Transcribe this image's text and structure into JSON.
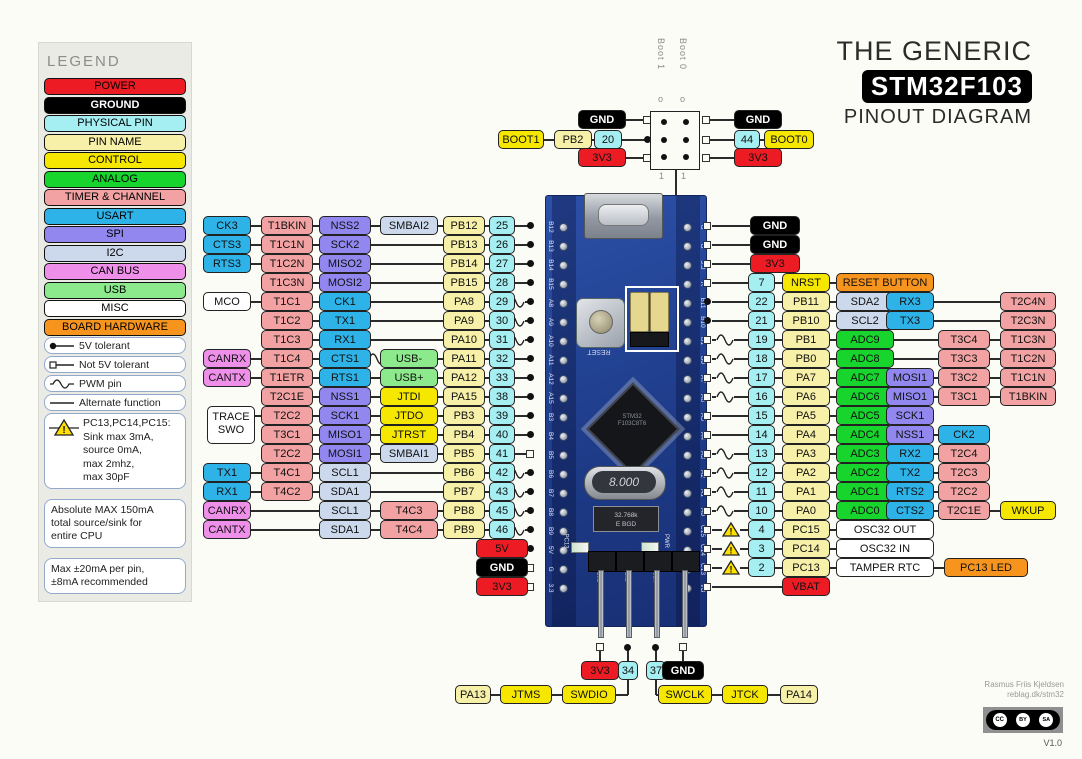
{
  "title": {
    "line1": "THE GENERIC",
    "line2": "STM32F103",
    "line3": "PINOUT DIAGRAM"
  },
  "attribution": {
    "author": "Rasmus Friis Kjeldsen",
    "site": "reblag.dk/stm32",
    "version": "V1.0",
    "license_icons": [
      "CC",
      "BY",
      "SA"
    ]
  },
  "colors": {
    "pw": "#ed1c24",
    "gd": "#000000",
    "ph": "#a5eef2",
    "pn": "#f7f0a8",
    "ct": "#f6e700",
    "an": "#17d52c",
    "tm": "#f2a2a2",
    "us": "#2eb3e8",
    "sp": "#9187ef",
    "i2": "#ccd9ec",
    "cn": "#ee8fe9",
    "ub": "#8ce98c",
    "ms": "#ffffff",
    "hw": "#f7941e"
  },
  "legend": {
    "title": "LEGEND",
    "items": [
      {
        "label": "POWER",
        "c": "pw"
      },
      {
        "label": "GROUND",
        "c": "gd"
      },
      {
        "label": "PHYSICAL PIN",
        "c": "ph"
      },
      {
        "label": "PIN NAME",
        "c": "pn"
      },
      {
        "label": "CONTROL",
        "c": "ct"
      },
      {
        "label": "ANALOG",
        "c": "an"
      },
      {
        "label": "TIMER & CHANNEL",
        "c": "tm"
      },
      {
        "label": "USART",
        "c": "us"
      },
      {
        "label": "SPI",
        "c": "sp"
      },
      {
        "label": "I2C",
        "c": "i2"
      },
      {
        "label": "CAN BUS",
        "c": "cn"
      },
      {
        "label": "USB",
        "c": "ub"
      },
      {
        "label": "MISC",
        "c": "ms"
      },
      {
        "label": "BOARD HARDWARE",
        "c": "hw"
      }
    ],
    "markers": [
      {
        "icon": "dot",
        "label": "5V tolerant"
      },
      {
        "icon": "square",
        "label": "Not 5V tolerant"
      },
      {
        "icon": "pwm",
        "label": "PWM pin"
      },
      {
        "icon": "line",
        "label": "Alternate function"
      }
    ],
    "warning_lines": [
      "PC13,PC14,PC15:",
      "Sink max 3mA,",
      "source 0mA,",
      "max 2mhz,",
      "max 30pF"
    ],
    "notes": [
      "Absolute MAX 150mA\ntotal source/sink for\nentire CPU",
      "Max ±20mA per pin,\n±8mA recommended"
    ]
  },
  "top_jumper": {
    "left": {
      "boot": "BOOT1",
      "pin": "PB2",
      "num": "20",
      "above": "GND",
      "below": "3V3"
    },
    "right": {
      "boot": "BOOT0",
      "num": "44",
      "above": "GND",
      "below": "3V3"
    },
    "col_left_label": "Boot 1",
    "col_right_label": "Boot 0",
    "open_marks": [
      "o",
      "o"
    ],
    "bottom_marks": [
      "1",
      "1"
    ]
  },
  "left_rows": [
    {
      "cells": [
        [
          "L0",
          "CK3",
          "us"
        ],
        [
          "L1",
          "T1BKIN",
          "tm"
        ],
        [
          "L2",
          "NSS2",
          "sp"
        ],
        [
          "L3",
          "SMBAI2",
          "i2"
        ],
        [
          "L4",
          "PB12",
          "pn"
        ],
        [
          "L5",
          "25",
          "ph"
        ]
      ],
      "m": "d"
    },
    {
      "cells": [
        [
          "L0",
          "CTS3",
          "us"
        ],
        [
          "L1",
          "T1C1N",
          "tm"
        ],
        [
          "L2",
          "SCK2",
          "sp"
        ],
        [
          "L4",
          "PB13",
          "pn"
        ],
        [
          "L5",
          "26",
          "ph"
        ]
      ],
      "m": "d"
    },
    {
      "cells": [
        [
          "L0",
          "RTS3",
          "us"
        ],
        [
          "L1",
          "T1C2N",
          "tm"
        ],
        [
          "L2",
          "MISO2",
          "sp"
        ],
        [
          "L4",
          "PB14",
          "pn"
        ],
        [
          "L5",
          "27",
          "ph"
        ]
      ],
      "m": "d"
    },
    {
      "cells": [
        [
          "L1",
          "T1C3N",
          "tm"
        ],
        [
          "L2",
          "MOSI2",
          "sp"
        ],
        [
          "L4",
          "PB15",
          "pn"
        ],
        [
          "L5",
          "28",
          "ph"
        ]
      ],
      "m": "d"
    },
    {
      "cells": [
        [
          "L0",
          "MCO",
          "ms"
        ],
        [
          "L1",
          "T1C1",
          "tm"
        ],
        [
          "L2",
          "CK1",
          "us"
        ],
        [
          "L4",
          "PA8",
          "pn"
        ],
        [
          "L5",
          "29",
          "ph"
        ]
      ],
      "m": "d",
      "p": true
    },
    {
      "cells": [
        [
          "L1",
          "T1C2",
          "tm"
        ],
        [
          "L2",
          "TX1",
          "us"
        ],
        [
          "L4",
          "PA9",
          "pn"
        ],
        [
          "L5",
          "30",
          "ph"
        ]
      ],
      "m": "d",
      "p": true
    },
    {
      "cells": [
        [
          "L1",
          "T1C3",
          "tm"
        ],
        [
          "L2",
          "RX1",
          "us"
        ],
        [
          "L4",
          "PA10",
          "pn"
        ],
        [
          "L5",
          "31",
          "ph"
        ]
      ],
      "m": "d",
      "p": true
    },
    {
      "cells": [
        [
          "L0",
          "CANRX",
          "cn"
        ],
        [
          "L1",
          "T1C4",
          "tm"
        ],
        [
          "L2",
          "CTS1",
          "us"
        ],
        [
          "L3",
          "USB-",
          "ub"
        ],
        [
          "L4",
          "PA11",
          "pn"
        ],
        [
          "L5",
          "32",
          "ph"
        ]
      ],
      "m": "d",
      "p": true,
      "px": 368
    },
    {
      "cells": [
        [
          "L0",
          "CANTX",
          "cn"
        ],
        [
          "L1",
          "T1ETR",
          "tm"
        ],
        [
          "L2",
          "RTS1",
          "us"
        ],
        [
          "L3",
          "USB+",
          "ub"
        ],
        [
          "L4",
          "PA12",
          "pn"
        ],
        [
          "L5",
          "33",
          "ph"
        ]
      ],
      "m": "d"
    },
    {
      "cells": [
        [
          "L1",
          "T2C1E",
          "tm"
        ],
        [
          "L2",
          "NSS1",
          "sp"
        ],
        [
          "L3",
          "JTDI",
          "ct"
        ],
        [
          "L4",
          "PA15",
          "pn"
        ],
        [
          "L5",
          "38",
          "ph"
        ]
      ],
      "m": "d"
    },
    {
      "cells": [
        [
          "L1",
          "T2C2",
          "tm"
        ],
        [
          "L2",
          "SCK1",
          "sp"
        ],
        [
          "L3",
          "JTDO",
          "ct"
        ],
        [
          "L4",
          "PB3",
          "pn"
        ],
        [
          "L5",
          "39",
          "ph"
        ]
      ],
      "m": "d"
    },
    {
      "cells": [
        [
          "L1",
          "T3C1",
          "tm"
        ],
        [
          "L2",
          "MISO1",
          "sp"
        ],
        [
          "L3",
          "JTRST",
          "ct"
        ],
        [
          "L4",
          "PB4",
          "pn"
        ],
        [
          "L5",
          "40",
          "ph"
        ]
      ],
      "m": "d"
    },
    {
      "cells": [
        [
          "L1",
          "T2C2",
          "tm"
        ],
        [
          "L2",
          "MOSI1",
          "sp"
        ],
        [
          "L3",
          "SMBAI1",
          "i2"
        ],
        [
          "L4",
          "PB5",
          "pn"
        ],
        [
          "L5",
          "41",
          "ph"
        ]
      ],
      "m": "s"
    },
    {
      "cells": [
        [
          "L0",
          "TX1",
          "us"
        ],
        [
          "L1",
          "T4C1",
          "tm"
        ],
        [
          "L2",
          "SCL1",
          "i2"
        ],
        [
          "L4",
          "PB6",
          "pn"
        ],
        [
          "L5",
          "42",
          "ph"
        ]
      ],
      "m": "d",
      "p": true
    },
    {
      "cells": [
        [
          "L0",
          "RX1",
          "us"
        ],
        [
          "L1",
          "T4C2",
          "tm"
        ],
        [
          "L2",
          "SDA1",
          "i2"
        ],
        [
          "L4",
          "PB7",
          "pn"
        ],
        [
          "L5",
          "43",
          "ph"
        ]
      ],
      "m": "d",
      "p": true
    },
    {
      "cells": [
        [
          "L0",
          "CANRX",
          "cn"
        ],
        [
          "L2",
          "SCL1",
          "i2"
        ],
        [
          "L3",
          "T4C3",
          "tm"
        ],
        [
          "L4",
          "PB8",
          "pn"
        ],
        [
          "L5",
          "45",
          "ph"
        ]
      ],
      "m": "d",
      "p": true
    },
    {
      "cells": [
        [
          "L0",
          "CANTX",
          "cn"
        ],
        [
          "L2",
          "SDA1",
          "i2"
        ],
        [
          "L3",
          "T4C4",
          "tm"
        ],
        [
          "L4",
          "PB9",
          "pn"
        ],
        [
          "L5",
          "46",
          "ph"
        ]
      ],
      "m": "d",
      "p": true
    }
  ],
  "trace_swo": {
    "label": "TRACE SWO"
  },
  "left_power": [
    {
      "t": "5V",
      "c": "pw",
      "m": "d"
    },
    {
      "t": "GND",
      "c": "gd",
      "m": "s"
    },
    {
      "t": "3V3",
      "c": "pw",
      "m": "s"
    }
  ],
  "right_rows": [
    {
      "cells": [
        [
          "RG",
          "GND",
          "gd"
        ]
      ],
      "m": "s"
    },
    {
      "cells": [
        [
          "RG",
          "GND",
          "gd"
        ]
      ],
      "m": "s"
    },
    {
      "cells": [
        [
          "RG",
          "3V3",
          "pw"
        ]
      ],
      "m": "s"
    },
    {
      "cells": [
        [
          "R0",
          "7",
          "ph"
        ],
        [
          "R1",
          "NRST",
          "ct"
        ],
        [
          "RW",
          "RESET BUTTON",
          "hw"
        ]
      ],
      "m": "s"
    },
    {
      "cells": [
        [
          "R0",
          "22",
          "ph"
        ],
        [
          "R1",
          "PB11",
          "pn"
        ],
        [
          "RA",
          "SDA2",
          "i2"
        ],
        [
          "RB",
          "RX3",
          "us"
        ],
        [
          "RD",
          "T2C4N",
          "tm"
        ]
      ],
      "m": "d"
    },
    {
      "cells": [
        [
          "R0",
          "21",
          "ph"
        ],
        [
          "R1",
          "PB10",
          "pn"
        ],
        [
          "RA",
          "SCL2",
          "i2"
        ],
        [
          "RB",
          "TX3",
          "us"
        ],
        [
          "RD",
          "T2C3N",
          "tm"
        ]
      ],
      "m": "d"
    },
    {
      "cells": [
        [
          "R0",
          "19",
          "ph"
        ],
        [
          "R1",
          "PB1",
          "pn"
        ],
        [
          "RA",
          "ADC9",
          "an"
        ],
        [
          "RC",
          "T3C4",
          "tm"
        ],
        [
          "RD",
          "T1C3N",
          "tm"
        ]
      ],
      "m": "s",
      "p": true
    },
    {
      "cells": [
        [
          "R0",
          "18",
          "ph"
        ],
        [
          "R1",
          "PB0",
          "pn"
        ],
        [
          "RA",
          "ADC8",
          "an"
        ],
        [
          "RC",
          "T3C3",
          "tm"
        ],
        [
          "RD",
          "T1C2N",
          "tm"
        ]
      ],
      "m": "s",
      "p": true
    },
    {
      "cells": [
        [
          "R0",
          "17",
          "ph"
        ],
        [
          "R1",
          "PA7",
          "pn"
        ],
        [
          "RA",
          "ADC7",
          "an"
        ],
        [
          "RB",
          "MOSI1",
          "sp"
        ],
        [
          "RC",
          "T3C2",
          "tm"
        ],
        [
          "RD",
          "T1C1N",
          "tm"
        ]
      ],
      "m": "s",
      "p": true
    },
    {
      "cells": [
        [
          "R0",
          "16",
          "ph"
        ],
        [
          "R1",
          "PA6",
          "pn"
        ],
        [
          "RA",
          "ADC6",
          "an"
        ],
        [
          "RB",
          "MISO1",
          "sp"
        ],
        [
          "RC",
          "T3C1",
          "tm"
        ],
        [
          "RD",
          "T1BKIN",
          "tm"
        ]
      ],
      "m": "s",
      "p": true
    },
    {
      "cells": [
        [
          "R0",
          "15",
          "ph"
        ],
        [
          "R1",
          "PA5",
          "pn"
        ],
        [
          "RA",
          "ADC5",
          "an"
        ],
        [
          "RB",
          "SCK1",
          "sp"
        ]
      ],
      "m": "s"
    },
    {
      "cells": [
        [
          "R0",
          "14",
          "ph"
        ],
        [
          "R1",
          "PA4",
          "pn"
        ],
        [
          "RA",
          "ADC4",
          "an"
        ],
        [
          "RB",
          "NSS1",
          "sp"
        ],
        [
          "RC",
          "CK2",
          "us"
        ]
      ],
      "m": "s"
    },
    {
      "cells": [
        [
          "R0",
          "13",
          "ph"
        ],
        [
          "R1",
          "PA3",
          "pn"
        ],
        [
          "RA",
          "ADC3",
          "an"
        ],
        [
          "RB",
          "RX2",
          "us"
        ],
        [
          "RC",
          "T2C4",
          "tm"
        ]
      ],
      "m": "s",
      "p": true
    },
    {
      "cells": [
        [
          "R0",
          "12",
          "ph"
        ],
        [
          "R1",
          "PA2",
          "pn"
        ],
        [
          "RA",
          "ADC2",
          "an"
        ],
        [
          "RB",
          "TX2",
          "us"
        ],
        [
          "RC",
          "T2C3",
          "tm"
        ]
      ],
      "m": "s",
      "p": true
    },
    {
      "cells": [
        [
          "R0",
          "11",
          "ph"
        ],
        [
          "R1",
          "PA1",
          "pn"
        ],
        [
          "RA",
          "ADC1",
          "an"
        ],
        [
          "RB",
          "RTS2",
          "us"
        ],
        [
          "RC",
          "T2C2",
          "tm"
        ]
      ],
      "m": "s",
      "p": true
    },
    {
      "cells": [
        [
          "R0",
          "10",
          "ph"
        ],
        [
          "R1",
          "PA0",
          "pn"
        ],
        [
          "RA",
          "ADC0",
          "an"
        ],
        [
          "RB",
          "CTS2",
          "us"
        ],
        [
          "RC",
          "T2C1E",
          "tm"
        ],
        [
          "RD",
          "WKUP",
          "ct"
        ]
      ],
      "m": "s",
      "p": true
    },
    {
      "cells": [
        [
          "R0",
          "4",
          "ph"
        ],
        [
          "R1",
          "PC15",
          "pn"
        ],
        [
          "RW",
          "OSC32 OUT",
          "ms"
        ]
      ],
      "m": "s",
      "w": true
    },
    {
      "cells": [
        [
          "R0",
          "3",
          "ph"
        ],
        [
          "R1",
          "PC14",
          "pn"
        ],
        [
          "RW",
          "OSC32 IN",
          "ms"
        ]
      ],
      "m": "s",
      "w": true
    },
    {
      "cells": [
        [
          "R0",
          "2",
          "ph"
        ],
        [
          "R1",
          "PC13",
          "pn"
        ],
        [
          "RW",
          "TAMPER RTC",
          "ms"
        ],
        [
          "RL",
          "PC13 LED",
          "hw"
        ]
      ],
      "m": "s",
      "w": true
    },
    {
      "cells": [
        [
          "R1",
          "VBAT",
          "pw"
        ]
      ],
      "m": "s"
    }
  ],
  "bottom": {
    "rail": [
      {
        "t": "3V3",
        "c": "pw",
        "m": "s"
      },
      {
        "t": "34",
        "c": "ph",
        "m": "d"
      },
      {
        "t": "37",
        "c": "ph",
        "m": "d"
      },
      {
        "t": "GND",
        "c": "gd",
        "m": "s"
      }
    ],
    "left_chain": [
      {
        "t": "PA13",
        "c": "pn"
      },
      {
        "t": "JTMS",
        "c": "ct"
      },
      {
        "t": "SWDIO",
        "c": "ct"
      }
    ],
    "right_chain": [
      {
        "t": "SWCLK",
        "c": "ct"
      },
      {
        "t": "JTCK",
        "c": "ct"
      },
      {
        "t": "PA14",
        "c": "pn"
      }
    ]
  },
  "board": {
    "left_labels": [
      "B12",
      "B13",
      "B14",
      "B15",
      "A8",
      "A9",
      "A10",
      "A11",
      "A12",
      "A15",
      "B3",
      "B4",
      "B5",
      "B6",
      "B7",
      "B8",
      "B9",
      "5V",
      "G",
      "3.3"
    ],
    "right_labels": [
      "G",
      "G",
      "3.3",
      "R",
      "B11",
      "B10",
      "B1",
      "B0",
      "A7",
      "A6",
      "A5",
      "A4",
      "A3",
      "A2",
      "A1",
      "A0",
      "C15",
      "C14",
      "C13",
      "VB"
    ],
    "reset_label": "RESET",
    "crystal_main": "8.000",
    "crystal_rtc": "32.768k",
    "crystal_rtc2": "E  BGD",
    "chip_line1": "STM32",
    "chip_line2": "F103C8T6",
    "led_labels": [
      "PC13",
      "PWR"
    ],
    "header_labels": [
      "3V3",
      "DIO",
      "CLK",
      "GND"
    ]
  }
}
